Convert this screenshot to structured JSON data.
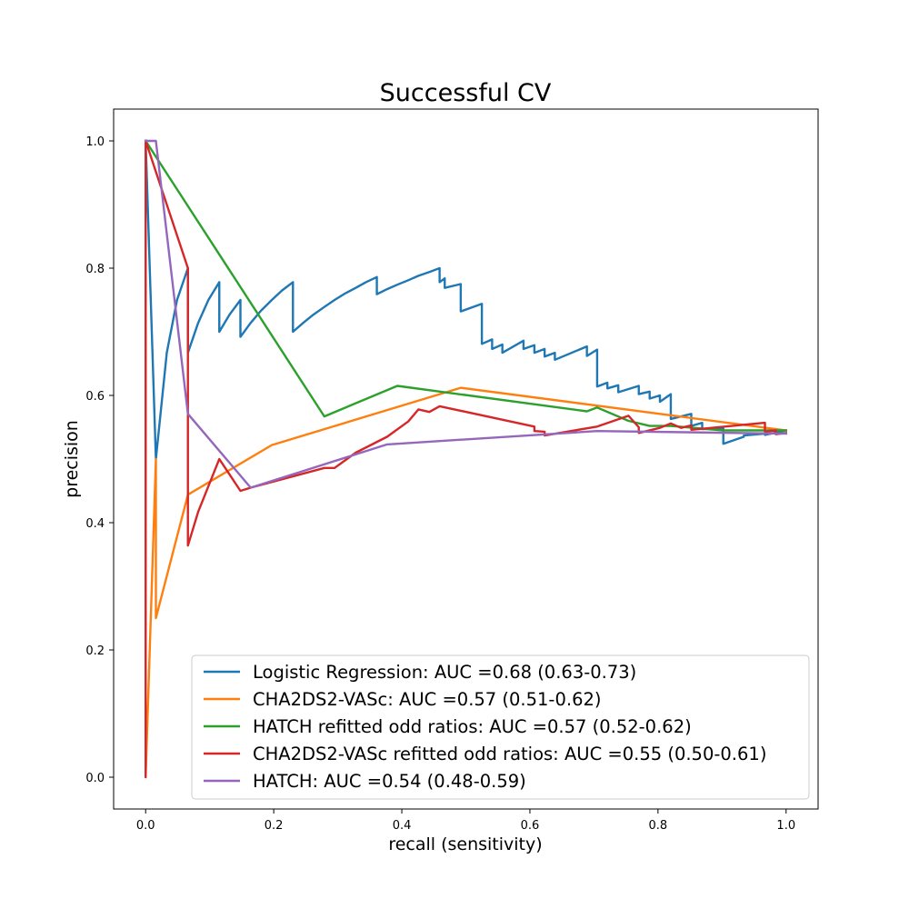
{
  "chart_data": {
    "type": "line",
    "title": "Successful CV",
    "xlabel": "recall (sensitivity)",
    "ylabel": "precision",
    "xlim": [
      -0.05,
      1.05
    ],
    "ylim": [
      -0.05,
      1.05
    ],
    "xticks": [
      0.0,
      0.2,
      0.4,
      0.6,
      0.8,
      1.0
    ],
    "xtick_labels": [
      "0.0",
      "0.2",
      "0.4",
      "0.6",
      "0.8",
      "1.0"
    ],
    "yticks": [
      0.0,
      0.2,
      0.4,
      0.6,
      0.8,
      1.0
    ],
    "ytick_labels": [
      "0.0",
      "0.2",
      "0.4",
      "0.6",
      "0.8",
      "1.0"
    ],
    "grid": false,
    "legend_position": "lower-right",
    "series": [
      {
        "name": "Logistic Regression: AUC =0.68 (0.63-0.73)",
        "color": "#1f77b4",
        "x": [
          0.0,
          0.016,
          0.016,
          0.033,
          0.049,
          0.066,
          0.066,
          0.082,
          0.098,
          0.115,
          0.115,
          0.131,
          0.148,
          0.148,
          0.164,
          0.18,
          0.197,
          0.213,
          0.23,
          0.23,
          0.246,
          0.262,
          0.279,
          0.295,
          0.311,
          0.328,
          0.344,
          0.361,
          0.361,
          0.377,
          0.393,
          0.41,
          0.426,
          0.443,
          0.459,
          0.459,
          0.467,
          0.467,
          0.492,
          0.492,
          0.525,
          0.525,
          0.541,
          0.541,
          0.557,
          0.557,
          0.59,
          0.59,
          0.607,
          0.607,
          0.623,
          0.623,
          0.639,
          0.639,
          0.689,
          0.689,
          0.705,
          0.705,
          0.721,
          0.721,
          0.738,
          0.738,
          0.77,
          0.77,
          0.787,
          0.787,
          0.803,
          0.803,
          0.82,
          0.82,
          0.852,
          0.852,
          0.869,
          0.869,
          0.902,
          0.902,
          0.934,
          0.934,
          0.967,
          0.967,
          1.0,
          1.0
        ],
        "y": [
          1.0,
          0.5,
          0.5,
          0.667,
          0.75,
          0.8,
          0.667,
          0.714,
          0.75,
          0.778,
          0.7,
          0.727,
          0.75,
          0.692,
          0.714,
          0.733,
          0.75,
          0.765,
          0.778,
          0.7,
          0.714,
          0.727,
          0.739,
          0.75,
          0.76,
          0.769,
          0.778,
          0.786,
          0.759,
          0.767,
          0.774,
          0.781,
          0.788,
          0.794,
          0.8,
          0.778,
          0.784,
          0.769,
          0.775,
          0.732,
          0.744,
          0.681,
          0.688,
          0.673,
          0.68,
          0.667,
          0.686,
          0.673,
          0.679,
          0.667,
          0.673,
          0.661,
          0.667,
          0.656,
          0.677,
          0.662,
          0.672,
          0.614,
          0.62,
          0.611,
          0.616,
          0.605,
          0.615,
          0.602,
          0.606,
          0.595,
          0.6,
          0.59,
          0.602,
          0.563,
          0.571,
          0.552,
          0.557,
          0.547,
          0.548,
          0.524,
          0.535,
          0.537,
          0.54,
          0.538,
          0.545,
          0.545
        ]
      },
      {
        "name": "CHA2DS2-VASc: AUC =0.57 (0.51-0.62)",
        "color": "#ff7f0e",
        "x": [
          0.0,
          0.0,
          0.016,
          0.016,
          0.066,
          0.197,
          0.492,
          1.0
        ],
        "y": [
          1.0,
          0.0,
          0.5,
          0.25,
          0.444,
          0.522,
          0.612,
          0.545
        ]
      },
      {
        "name": "HATCH refitted odd ratios: AUC =0.57 (0.52-0.62)",
        "color": "#2ca02c",
        "x": [
          0.0,
          0.279,
          0.393,
          0.689,
          0.705,
          0.754,
          0.787,
          0.82,
          0.902,
          1.0
        ],
        "y": [
          1.0,
          0.567,
          0.615,
          0.575,
          0.581,
          0.56,
          0.552,
          0.552,
          0.545,
          0.545
        ]
      },
      {
        "name": "CHA2DS2-VASc refitted odd ratios: AUC =0.55 (0.50-0.61)",
        "color": "#d62728",
        "x": [
          0.0,
          0.0,
          0.0,
          0.066,
          0.066,
          0.066,
          0.082,
          0.115,
          0.148,
          0.164,
          0.279,
          0.295,
          0.328,
          0.377,
          0.41,
          0.426,
          0.443,
          0.459,
          0.607,
          0.607,
          0.623,
          0.623,
          0.705,
          0.754,
          0.77,
          0.77,
          0.803,
          0.82,
          0.836,
          0.852,
          0.852,
          0.967,
          0.967,
          0.984,
          0.984,
          1.0
        ],
        "y": [
          1.0,
          0.0,
          1.0,
          0.8,
          0.364,
          0.364,
          0.417,
          0.5,
          0.45,
          0.455,
          0.486,
          0.486,
          0.51,
          0.535,
          0.559,
          0.578,
          0.574,
          0.583,
          0.551,
          0.544,
          0.543,
          0.537,
          0.551,
          0.568,
          0.55,
          0.541,
          0.549,
          0.556,
          0.549,
          0.553,
          0.546,
          0.557,
          0.543,
          0.545,
          0.539,
          0.541
        ]
      },
      {
        "name": "HATCH: AUC =0.54 (0.48-0.59)",
        "color": "#9467bd",
        "x": [
          0.0,
          0.016,
          0.066,
          0.164,
          0.377,
          0.705,
          1.0
        ],
        "y": [
          1.0,
          1.0,
          0.571,
          0.455,
          0.523,
          0.544,
          0.54
        ]
      }
    ]
  }
}
